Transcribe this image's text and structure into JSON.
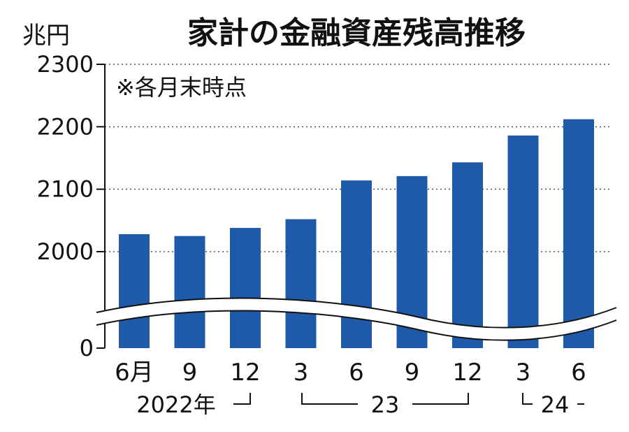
{
  "chart_data": {
    "type": "bar",
    "title": "家計の金融資産残高推移",
    "unit_label": "兆円",
    "note": "※各月末時点",
    "categories": [
      "6月",
      "9",
      "12",
      "3",
      "6",
      "9",
      "12",
      "3",
      "6"
    ],
    "values": [
      2028,
      2025,
      2038,
      2052,
      2114,
      2121,
      2143,
      2186,
      2212
    ],
    "y_ticks": [
      "2300",
      "2200",
      "2100",
      "2000",
      "0"
    ],
    "ylim": [
      0,
      2300
    ],
    "axis_break": true,
    "grid": true,
    "bar_color": "#1f5aa8",
    "year_labels": [
      "2022年",
      "23",
      "24"
    ]
  }
}
